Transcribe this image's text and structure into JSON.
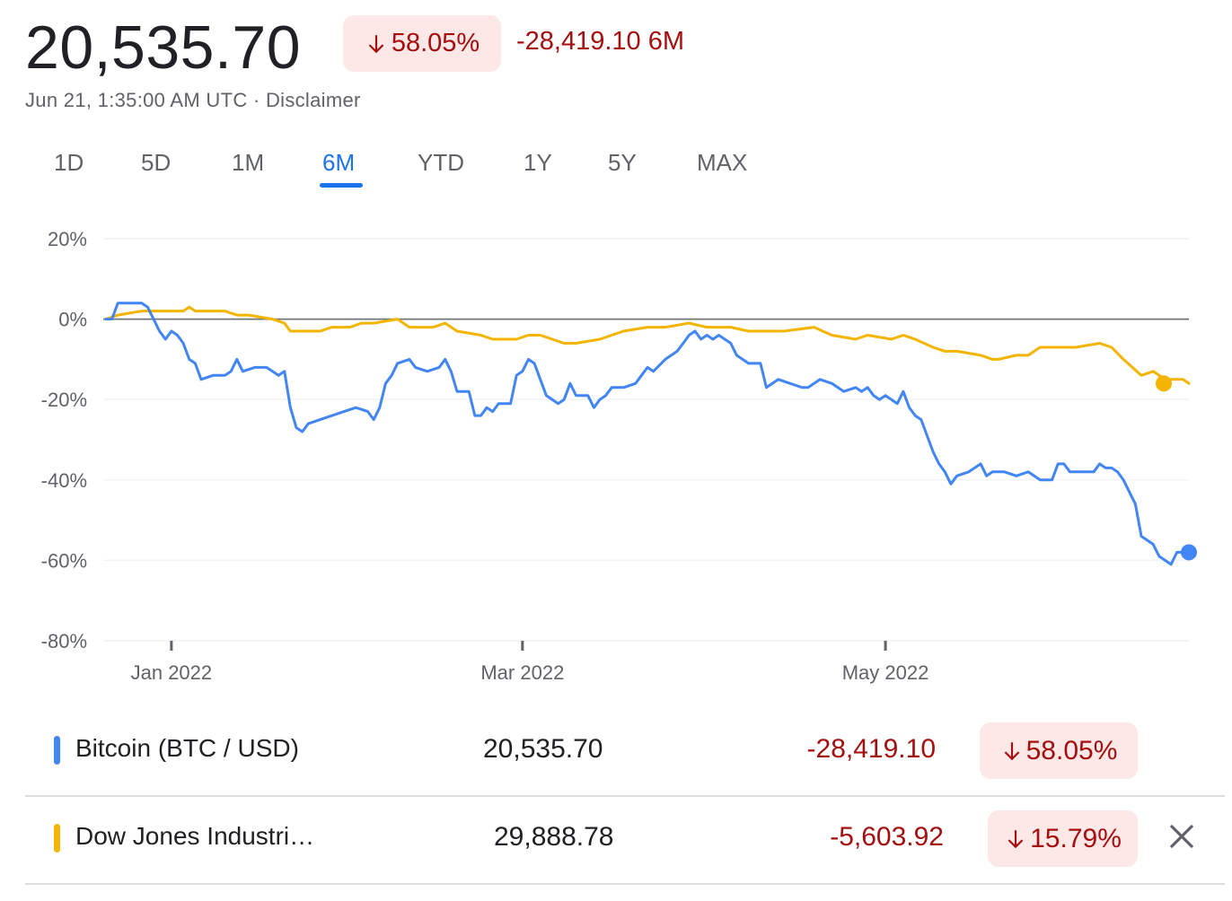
{
  "header": {
    "price": "20,535.70",
    "change_percent": "58.05%",
    "change_abs": "-28,419.10",
    "change_period": "6M",
    "timestamp": "Jun 21, 1:35:00 AM UTC · Disclaimer"
  },
  "ranges": [
    "1D",
    "5D",
    "1M",
    "6M",
    "YTD",
    "1Y",
    "5Y",
    "MAX"
  ],
  "active_range": "6M",
  "colors": {
    "btc": "#4285f4",
    "dji": "#f4b400",
    "down": "#a50e0e",
    "badge_bg": "#fce8e6",
    "active_tab": "#1a73e8"
  },
  "legend": [
    {
      "name": "Bitcoin (BTC / USD)",
      "price": "20,535.70",
      "change": "-28,419.10",
      "percent": "58.05%"
    },
    {
      "name": "Dow Jones Industri…",
      "price": "29,888.78",
      "change": "-5,603.92",
      "percent": "15.79%",
      "close_icon": "close-icon"
    }
  ],
  "chart_data": {
    "type": "line",
    "ylim": [
      -80,
      20
    ],
    "yticks": [
      20,
      0,
      -20,
      -40,
      -60,
      -80
    ],
    "ytick_labels": [
      "20%",
      "0%",
      "-20%",
      "-40%",
      "-60%",
      "-80%"
    ],
    "xlim": [
      "2021-12-21",
      "2022-06-21"
    ],
    "xticks": [
      {
        "date": "2022-01-01",
        "label": "Jan 2022"
      },
      {
        "date": "2022-03-01",
        "label": "Mar 2022"
      },
      {
        "date": "2022-05-01",
        "label": "May 2022"
      }
    ],
    "baseline": 0,
    "series": [
      {
        "name": "Bitcoin (BTC / USD)",
        "points": [
          [
            "2021-12-21",
            0
          ],
          [
            "2021-12-22",
            0
          ],
          [
            "2021-12-23",
            4
          ],
          [
            "2021-12-24",
            4
          ],
          [
            "2021-12-26",
            4
          ],
          [
            "2021-12-27",
            4
          ],
          [
            "2021-12-28",
            3
          ],
          [
            "2021-12-29",
            0
          ],
          [
            "2021-12-30",
            -3
          ],
          [
            "2021-12-31",
            -5
          ],
          [
            "2022-01-01",
            -3
          ],
          [
            "2022-01-02",
            -4
          ],
          [
            "2022-01-03",
            -6
          ],
          [
            "2022-01-04",
            -10
          ],
          [
            "2022-01-05",
            -11
          ],
          [
            "2022-01-06",
            -15
          ],
          [
            "2022-01-08",
            -14
          ],
          [
            "2022-01-10",
            -14
          ],
          [
            "2022-01-11",
            -13
          ],
          [
            "2022-01-12",
            -10
          ],
          [
            "2022-01-13",
            -13
          ],
          [
            "2022-01-15",
            -12
          ],
          [
            "2022-01-17",
            -12
          ],
          [
            "2022-01-19",
            -14
          ],
          [
            "2022-01-20",
            -13
          ],
          [
            "2022-01-21",
            -22
          ],
          [
            "2022-01-22",
            -27
          ],
          [
            "2022-01-23",
            -28
          ],
          [
            "2022-01-24",
            -26
          ],
          [
            "2022-01-26",
            -25
          ],
          [
            "2022-01-28",
            -24
          ],
          [
            "2022-01-30",
            -23
          ],
          [
            "2022-02-01",
            -22
          ],
          [
            "2022-02-03",
            -23
          ],
          [
            "2022-02-04",
            -25
          ],
          [
            "2022-02-05",
            -22
          ],
          [
            "2022-02-06",
            -16
          ],
          [
            "2022-02-07",
            -14
          ],
          [
            "2022-02-08",
            -11
          ],
          [
            "2022-02-10",
            -10
          ],
          [
            "2022-02-11",
            -12
          ],
          [
            "2022-02-13",
            -13
          ],
          [
            "2022-02-15",
            -12
          ],
          [
            "2022-02-16",
            -10
          ],
          [
            "2022-02-17",
            -13
          ],
          [
            "2022-02-18",
            -18
          ],
          [
            "2022-02-20",
            -18
          ],
          [
            "2022-02-21",
            -24
          ],
          [
            "2022-02-22",
            -24
          ],
          [
            "2022-02-23",
            -22
          ],
          [
            "2022-02-24",
            -23
          ],
          [
            "2022-02-25",
            -21
          ],
          [
            "2022-02-26",
            -21
          ],
          [
            "2022-02-27",
            -21
          ],
          [
            "2022-02-28",
            -14
          ],
          [
            "2022-03-01",
            -13
          ],
          [
            "2022-03-02",
            -10
          ],
          [
            "2022-03-03",
            -11
          ],
          [
            "2022-03-04",
            -15
          ],
          [
            "2022-03-05",
            -19
          ],
          [
            "2022-03-06",
            -20
          ],
          [
            "2022-03-07",
            -21
          ],
          [
            "2022-03-08",
            -20
          ],
          [
            "2022-03-09",
            -16
          ],
          [
            "2022-03-10",
            -19
          ],
          [
            "2022-03-12",
            -19
          ],
          [
            "2022-03-13",
            -22
          ],
          [
            "2022-03-14",
            -20
          ],
          [
            "2022-03-15",
            -19
          ],
          [
            "2022-03-16",
            -17
          ],
          [
            "2022-03-18",
            -17
          ],
          [
            "2022-03-20",
            -16
          ],
          [
            "2022-03-21",
            -14
          ],
          [
            "2022-03-22",
            -12
          ],
          [
            "2022-03-23",
            -13
          ],
          [
            "2022-03-25",
            -10
          ],
          [
            "2022-03-27",
            -8
          ],
          [
            "2022-03-28",
            -6
          ],
          [
            "2022-03-29",
            -4
          ],
          [
            "2022-03-30",
            -3
          ],
          [
            "2022-03-31",
            -5
          ],
          [
            "2022-04-01",
            -4
          ],
          [
            "2022-04-02",
            -5
          ],
          [
            "2022-04-03",
            -4
          ],
          [
            "2022-04-04",
            -5
          ],
          [
            "2022-04-05",
            -6
          ],
          [
            "2022-04-06",
            -9
          ],
          [
            "2022-04-08",
            -11
          ],
          [
            "2022-04-10",
            -11
          ],
          [
            "2022-04-11",
            -17
          ],
          [
            "2022-04-13",
            -15
          ],
          [
            "2022-04-15",
            -16
          ],
          [
            "2022-04-17",
            -17
          ],
          [
            "2022-04-18",
            -17
          ],
          [
            "2022-04-20",
            -15
          ],
          [
            "2022-04-22",
            -16
          ],
          [
            "2022-04-24",
            -18
          ],
          [
            "2022-04-26",
            -17
          ],
          [
            "2022-04-27",
            -18
          ],
          [
            "2022-04-28",
            -17
          ],
          [
            "2022-04-29",
            -19
          ],
          [
            "2022-04-30",
            -20
          ],
          [
            "2022-05-01",
            -19
          ],
          [
            "2022-05-02",
            -20
          ],
          [
            "2022-05-03",
            -21
          ],
          [
            "2022-05-04",
            -18
          ],
          [
            "2022-05-05",
            -22
          ],
          [
            "2022-05-06",
            -24
          ],
          [
            "2022-05-07",
            -25
          ],
          [
            "2022-05-09",
            -33
          ],
          [
            "2022-05-10",
            -36
          ],
          [
            "2022-05-11",
            -38
          ],
          [
            "2022-05-12",
            -41
          ],
          [
            "2022-05-13",
            -39
          ],
          [
            "2022-05-15",
            -38
          ],
          [
            "2022-05-17",
            -36
          ],
          [
            "2022-05-18",
            -39
          ],
          [
            "2022-05-19",
            -38
          ],
          [
            "2022-05-21",
            -38
          ],
          [
            "2022-05-23",
            -39
          ],
          [
            "2022-05-25",
            -38
          ],
          [
            "2022-05-27",
            -40
          ],
          [
            "2022-05-29",
            -40
          ],
          [
            "2022-05-30",
            -36
          ],
          [
            "2022-05-31",
            -36
          ],
          [
            "2022-06-01",
            -38
          ],
          [
            "2022-06-03",
            -38
          ],
          [
            "2022-06-05",
            -38
          ],
          [
            "2022-06-06",
            -36
          ],
          [
            "2022-06-07",
            -37
          ],
          [
            "2022-06-08",
            -37
          ],
          [
            "2022-06-09",
            -38
          ],
          [
            "2022-06-10",
            -40
          ],
          [
            "2022-06-11",
            -43
          ],
          [
            "2022-06-12",
            -46
          ],
          [
            "2022-06-13",
            -54
          ],
          [
            "2022-06-14",
            -55
          ],
          [
            "2022-06-15",
            -56
          ],
          [
            "2022-06-16",
            -59
          ],
          [
            "2022-06-17",
            -60
          ],
          [
            "2022-06-18",
            -61
          ],
          [
            "2022-06-19",
            -58
          ],
          [
            "2022-06-20",
            -58
          ],
          [
            "2022-06-21",
            -58
          ]
        ]
      },
      {
        "name": "Dow Jones Industri…",
        "points": [
          [
            "2021-12-21",
            0
          ],
          [
            "2021-12-23",
            1
          ],
          [
            "2021-12-27",
            2
          ],
          [
            "2021-12-29",
            2
          ],
          [
            "2021-12-31",
            2
          ],
          [
            "2022-01-03",
            2
          ],
          [
            "2022-01-04",
            3
          ],
          [
            "2022-01-05",
            2
          ],
          [
            "2022-01-07",
            2
          ],
          [
            "2022-01-10",
            2
          ],
          [
            "2022-01-12",
            1
          ],
          [
            "2022-01-14",
            1
          ],
          [
            "2022-01-18",
            0
          ],
          [
            "2022-01-20",
            -1
          ],
          [
            "2022-01-21",
            -3
          ],
          [
            "2022-01-24",
            -3
          ],
          [
            "2022-01-26",
            -3
          ],
          [
            "2022-01-28",
            -2
          ],
          [
            "2022-01-31",
            -2
          ],
          [
            "2022-02-02",
            -1
          ],
          [
            "2022-02-04",
            -1
          ],
          [
            "2022-02-08",
            0
          ],
          [
            "2022-02-10",
            -2
          ],
          [
            "2022-02-14",
            -2
          ],
          [
            "2022-02-16",
            -1
          ],
          [
            "2022-02-18",
            -3
          ],
          [
            "2022-02-22",
            -4
          ],
          [
            "2022-02-24",
            -5
          ],
          [
            "2022-02-28",
            -5
          ],
          [
            "2022-03-02",
            -4
          ],
          [
            "2022-03-04",
            -4
          ],
          [
            "2022-03-08",
            -6
          ],
          [
            "2022-03-10",
            -6
          ],
          [
            "2022-03-14",
            -5
          ],
          [
            "2022-03-16",
            -4
          ],
          [
            "2022-03-18",
            -3
          ],
          [
            "2022-03-22",
            -2
          ],
          [
            "2022-03-25",
            -2
          ],
          [
            "2022-03-29",
            -1
          ],
          [
            "2022-04-01",
            -2
          ],
          [
            "2022-04-05",
            -2
          ],
          [
            "2022-04-08",
            -3
          ],
          [
            "2022-04-12",
            -3
          ],
          [
            "2022-04-14",
            -3
          ],
          [
            "2022-04-19",
            -2
          ],
          [
            "2022-04-22",
            -4
          ],
          [
            "2022-04-26",
            -5
          ],
          [
            "2022-04-28",
            -4
          ],
          [
            "2022-05-02",
            -5
          ],
          [
            "2022-05-04",
            -4
          ],
          [
            "2022-05-06",
            -5
          ],
          [
            "2022-05-09",
            -7
          ],
          [
            "2022-05-11",
            -8
          ],
          [
            "2022-05-13",
            -8
          ],
          [
            "2022-05-17",
            -9
          ],
          [
            "2022-05-19",
            -10
          ],
          [
            "2022-05-20",
            -10
          ],
          [
            "2022-05-23",
            -9
          ],
          [
            "2022-05-25",
            -9
          ],
          [
            "2022-05-27",
            -7
          ],
          [
            "2022-05-31",
            -7
          ],
          [
            "2022-06-02",
            -7
          ],
          [
            "2022-06-06",
            -6
          ],
          [
            "2022-06-08",
            -7
          ],
          [
            "2022-06-10",
            -10
          ],
          [
            "2022-06-13",
            -14
          ],
          [
            "2022-06-15",
            -13
          ],
          [
            "2022-06-17",
            -15
          ],
          [
            "2022-06-20",
            -15
          ],
          [
            "2022-06-21",
            -16
          ]
        ]
      }
    ]
  }
}
